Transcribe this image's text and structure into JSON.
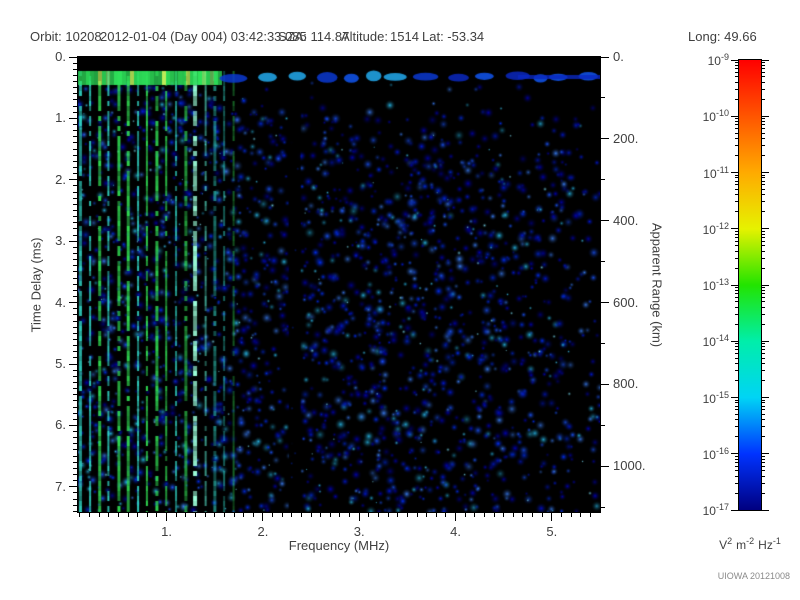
{
  "header": {
    "orbit": "Orbit: 10208",
    "datetime": "2012-01-04 (Day 004) 03:42:33.085",
    "sza": "SZA: 114.87",
    "altitude_label": "Altitude:",
    "altitude_value": "1514",
    "lat": "Lat: -53.34",
    "long": "Long: 49.66"
  },
  "annotations": {
    "credit": "UIOWA 20121008"
  },
  "chart_data": {
    "type": "heatmap",
    "description": "Radar sounder ionogram spectrogram: spectral density vs frequency and time delay",
    "xlabel": "Frequency (MHz)",
    "ylabel_left": "Time Delay (ms)",
    "ylabel_right": "Apparent Range (km)",
    "x_range_mhz": [
      0.08,
      5.5
    ],
    "x_tick_values": [
      1,
      2,
      3,
      4,
      5
    ],
    "x_tick_labels": [
      "1.",
      "2.",
      "3.",
      "4.",
      "5."
    ],
    "x_minor_step_mhz": 0.1,
    "y_range_ms": [
      0,
      7.41
    ],
    "y_tick_values": [
      0,
      1,
      2,
      3,
      4,
      5,
      6,
      7
    ],
    "y_tick_labels": [
      "0.",
      "1.",
      "2.",
      "3.",
      "4.",
      "5.",
      "6.",
      "7."
    ],
    "y_minor_step_ms": 0.1,
    "right_tick_values_km": [
      0,
      200,
      400,
      600,
      800,
      1000
    ],
    "right_tick_labels": [
      "0.",
      "200.",
      "400.",
      "600.",
      "800.",
      "1000."
    ],
    "right_minor_step_km": 100,
    "km_per_ms": 150,
    "colorbar": {
      "base": "10",
      "exponents": [
        "-9",
        "-10",
        "-11",
        "-12",
        "-13",
        "-14",
        "-15",
        "-16",
        "-17"
      ],
      "units_parts": [
        {
          "base": "V",
          "exp": "2"
        },
        {
          "base": "m",
          "exp": "-2"
        },
        {
          "base": "Hz",
          "exp": "-1"
        }
      ],
      "gradient_stops": [
        {
          "pos": 0.0,
          "color": "#ff0000"
        },
        {
          "pos": 0.125,
          "color": "#ff5500"
        },
        {
          "pos": 0.25,
          "color": "#ffaa00"
        },
        {
          "pos": 0.375,
          "color": "#e6f200"
        },
        {
          "pos": 0.5,
          "color": "#22e400"
        },
        {
          "pos": 0.625,
          "color": "#00eeaa"
        },
        {
          "pos": 0.75,
          "color": "#00d4f5"
        },
        {
          "pos": 0.875,
          "color": "#0033ff"
        },
        {
          "pos": 1.0,
          "color": "#000080"
        }
      ]
    },
    "spectrogram": {
      "seed": 1337,
      "background": "#000000",
      "blob_count": 2800,
      "speck_count": 170,
      "noise_colors": [
        "#0000b4",
        "#0018dc",
        "#0030ff",
        "#1a55ff",
        "#3c82ff",
        "#28b8e8"
      ],
      "stripe_colors": [
        "#33e455",
        "#33ddcc",
        "#aaee44",
        "#62ffe2"
      ],
      "bright_stripe_color": "#9cffda",
      "bright_stripe_mhz": 1.27,
      "stripe_start_mhz": 0.1,
      "stripe_spacing_mhz": 0.1,
      "stripe_end_mhz": 1.75,
      "quiet_gap_mhz": [
        2.28,
        2.38
      ],
      "top_black_ms": 0.22,
      "band_ms": [
        0.23,
        0.46
      ],
      "band_green_end_mhz": 1.55,
      "band_colors_green": [
        "#2ee25a",
        "#7bed6c",
        "#bff25a"
      ],
      "band_colors_blue": [
        "#1155ee",
        "#22aaee",
        "#0a38d0",
        "#0a28c0"
      ]
    }
  }
}
